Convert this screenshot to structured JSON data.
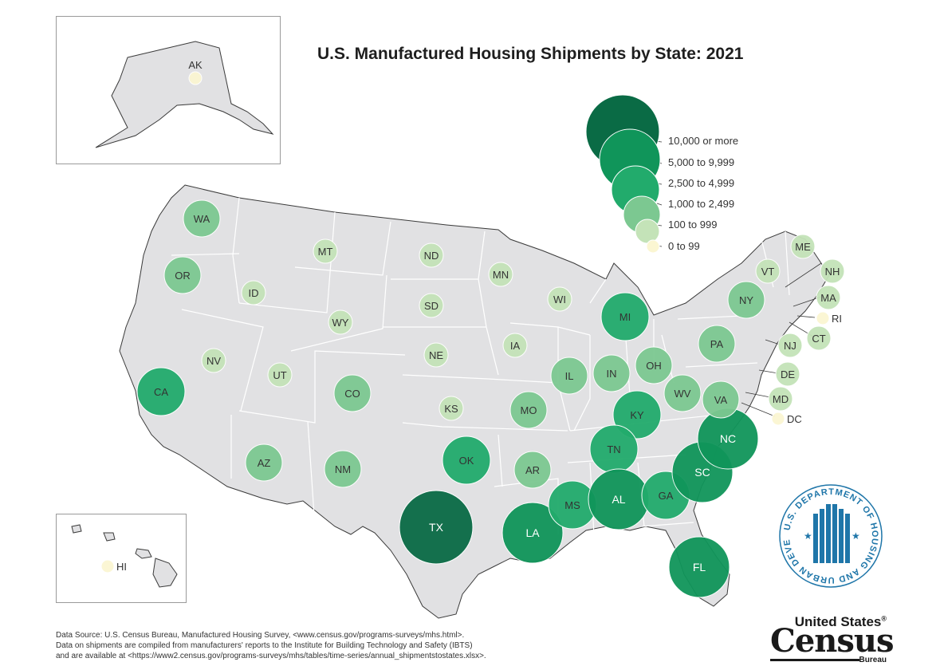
{
  "title": "U.S. Manufactured Housing Shipments by State: 2021",
  "colors": {
    "land": "#e1e1e3",
    "border": "#ffffff",
    "outline": "#3a3a3a",
    "tier_10000_plus": "#0a6b45",
    "tier_5000_9999": "#10955a",
    "tier_2500_4999": "#22ab6c",
    "tier_1000_2499": "#7cc891",
    "tier_100_999": "#c4e3b8",
    "tier_0_99": "#fbf6d2",
    "hud_blue": "#1f76a9"
  },
  "legend": [
    {
      "label": "10,000 or more",
      "tier": "tier_10000_plus"
    },
    {
      "label": "5,000 to 9,999",
      "tier": "tier_5000_9999"
    },
    {
      "label": "2,500 to 4,999",
      "tier": "tier_2500_4999"
    },
    {
      "label": "1,000 to 2,499",
      "tier": "tier_1000_2499"
    },
    {
      "label": "100 to 999",
      "tier": "tier_100_999"
    },
    {
      "label": "0 to 99",
      "tier": "tier_0_99"
    }
  ],
  "states": [
    {
      "code": "AK",
      "tier": "tier_0_99"
    },
    {
      "code": "WA",
      "tier": "tier_1000_2499"
    },
    {
      "code": "OR",
      "tier": "tier_1000_2499"
    },
    {
      "code": "CA",
      "tier": "tier_2500_4999"
    },
    {
      "code": "ID",
      "tier": "tier_100_999"
    },
    {
      "code": "NV",
      "tier": "tier_100_999"
    },
    {
      "code": "MT",
      "tier": "tier_100_999"
    },
    {
      "code": "WY",
      "tier": "tier_100_999"
    },
    {
      "code": "UT",
      "tier": "tier_100_999"
    },
    {
      "code": "AZ",
      "tier": "tier_1000_2499"
    },
    {
      "code": "CO",
      "tier": "tier_1000_2499"
    },
    {
      "code": "NM",
      "tier": "tier_1000_2499"
    },
    {
      "code": "ND",
      "tier": "tier_100_999"
    },
    {
      "code": "SD",
      "tier": "tier_100_999"
    },
    {
      "code": "NE",
      "tier": "tier_100_999"
    },
    {
      "code": "KS",
      "tier": "tier_100_999"
    },
    {
      "code": "OK",
      "tier": "tier_2500_4999"
    },
    {
      "code": "TX",
      "tier": "tier_10000_plus"
    },
    {
      "code": "MN",
      "tier": "tier_100_999"
    },
    {
      "code": "IA",
      "tier": "tier_100_999"
    },
    {
      "code": "MO",
      "tier": "tier_1000_2499"
    },
    {
      "code": "AR",
      "tier": "tier_1000_2499"
    },
    {
      "code": "LA",
      "tier": "tier_5000_9999"
    },
    {
      "code": "WI",
      "tier": "tier_100_999"
    },
    {
      "code": "IL",
      "tier": "tier_1000_2499"
    },
    {
      "code": "MI",
      "tier": "tier_2500_4999"
    },
    {
      "code": "IN",
      "tier": "tier_1000_2499"
    },
    {
      "code": "OH",
      "tier": "tier_1000_2499"
    },
    {
      "code": "KY",
      "tier": "tier_2500_4999"
    },
    {
      "code": "TN",
      "tier": "tier_2500_4999"
    },
    {
      "code": "MS",
      "tier": "tier_2500_4999"
    },
    {
      "code": "AL",
      "tier": "tier_5000_9999"
    },
    {
      "code": "GA",
      "tier": "tier_2500_4999"
    },
    {
      "code": "FL",
      "tier": "tier_5000_9999"
    },
    {
      "code": "SC",
      "tier": "tier_5000_9999"
    },
    {
      "code": "NC",
      "tier": "tier_5000_9999"
    },
    {
      "code": "VA",
      "tier": "tier_1000_2499"
    },
    {
      "code": "WV",
      "tier": "tier_1000_2499"
    },
    {
      "code": "PA",
      "tier": "tier_1000_2499"
    },
    {
      "code": "NY",
      "tier": "tier_1000_2499"
    },
    {
      "code": "ME",
      "tier": "tier_100_999"
    },
    {
      "code": "VT",
      "tier": "tier_100_999"
    },
    {
      "code": "NH",
      "tier": "tier_100_999"
    },
    {
      "code": "MA",
      "tier": "tier_100_999"
    },
    {
      "code": "RI",
      "tier": "tier_0_99"
    },
    {
      "code": "CT",
      "tier": "tier_100_999"
    },
    {
      "code": "NJ",
      "tier": "tier_100_999"
    },
    {
      "code": "DE",
      "tier": "tier_100_999"
    },
    {
      "code": "MD",
      "tier": "tier_100_999"
    },
    {
      "code": "DC",
      "tier": "tier_0_99"
    },
    {
      "code": "HI",
      "tier": "tier_0_99"
    }
  ],
  "footnote": [
    "Data Source: U.S. Census Bureau, Manufactured Housing Survey, <www.census.gov/programs-surveys/mhs.html>.",
    "Data on shipments are compiled from manufacturers' reports to the Institute for Building Technology and Safety (IBTS)",
    "and are available at <https://www2.census.gov/programs-surveys/mhs/tables/time-series/annual_shipmentstostates.xlsx>."
  ],
  "census_logo": {
    "line1": "United States",
    "mark": "®",
    "word": "Census",
    "line3": "Bureau"
  },
  "hud_seal": {
    "text": "U.S. DEPARTMENT OF HOUSING AND URBAN DEVELOPMENT"
  }
}
